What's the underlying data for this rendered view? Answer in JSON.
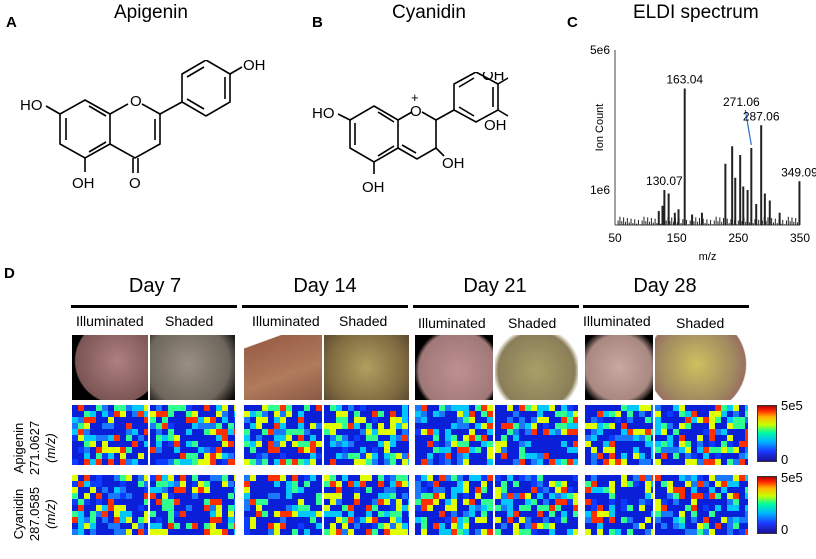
{
  "panels": {
    "A": {
      "letter": "A",
      "title": "Apigenin"
    },
    "B": {
      "letter": "B",
      "title": "Cyanidin"
    },
    "C": {
      "letter": "C",
      "title": "ELDI spectrum"
    },
    "D": {
      "letter": "D"
    }
  },
  "structure_labels": {
    "apigenin": {
      "oh_top": "OH",
      "oh_left": "HO",
      "oh_bottom": "OH",
      "ring_o": "O",
      "carbonyl_o": "O"
    },
    "cyanidin": {
      "oh_top": "OH",
      "oh_right": "OH",
      "oh_left": "HO",
      "oh_mid": "OH",
      "oh_bottom": "OH",
      "ring_o": "O",
      "charge": "+"
    }
  },
  "chart_data": {
    "type": "bar",
    "title": "ELDI spectrum",
    "xlabel": "m/z",
    "ylabel": "Ion Count",
    "xlim": [
      50,
      350
    ],
    "ylim": [
      0,
      5000000
    ],
    "xticks": [
      50,
      150,
      250,
      350
    ],
    "xtick_labels": [
      "50",
      "150",
      "250",
      "350"
    ],
    "yticks": [
      1000000,
      5000000
    ],
    "ytick_labels": [
      "1e6",
      "5e6"
    ],
    "peaks": [
      {
        "mz": 121,
        "value": 400000
      },
      {
        "mz": 127,
        "value": 550000
      },
      {
        "mz": 130.07,
        "value": 1000000,
        "label": "130.07"
      },
      {
        "mz": 137,
        "value": 900000
      },
      {
        "mz": 147,
        "value": 350000
      },
      {
        "mz": 153,
        "value": 450000
      },
      {
        "mz": 163.04,
        "value": 3900000,
        "label": "163.04"
      },
      {
        "mz": 175,
        "value": 300000
      },
      {
        "mz": 191,
        "value": 350000
      },
      {
        "mz": 229,
        "value": 1750000
      },
      {
        "mz": 240,
        "value": 2250000
      },
      {
        "mz": 245,
        "value": 1350000
      },
      {
        "mz": 253,
        "value": 2000000
      },
      {
        "mz": 258,
        "value": 1100000
      },
      {
        "mz": 265,
        "value": 1000000
      },
      {
        "mz": 271.06,
        "value": 2200000,
        "label": "271.06"
      },
      {
        "mz": 279,
        "value": 600000
      },
      {
        "mz": 287.06,
        "value": 2850000,
        "label": "287.06"
      },
      {
        "mz": 293,
        "value": 900000
      },
      {
        "mz": 301,
        "value": 700000
      },
      {
        "mz": 317,
        "value": 350000
      },
      {
        "mz": 349.09,
        "value": 1250000,
        "label": "349.09"
      }
    ]
  },
  "imaging": {
    "days": [
      "Day 7",
      "Day 14",
      "Day 21",
      "Day 28"
    ],
    "conditions": [
      "Illuminated",
      "Shaded"
    ],
    "rows": [
      {
        "name": "Apigenin",
        "mz": "271.0627",
        "unit": "(m/z)"
      },
      {
        "name": "Cyanidin",
        "mz": "287.0585",
        "unit": "(m/z)"
      }
    ],
    "colorbar": {
      "max": "5e5",
      "min": "0"
    }
  }
}
